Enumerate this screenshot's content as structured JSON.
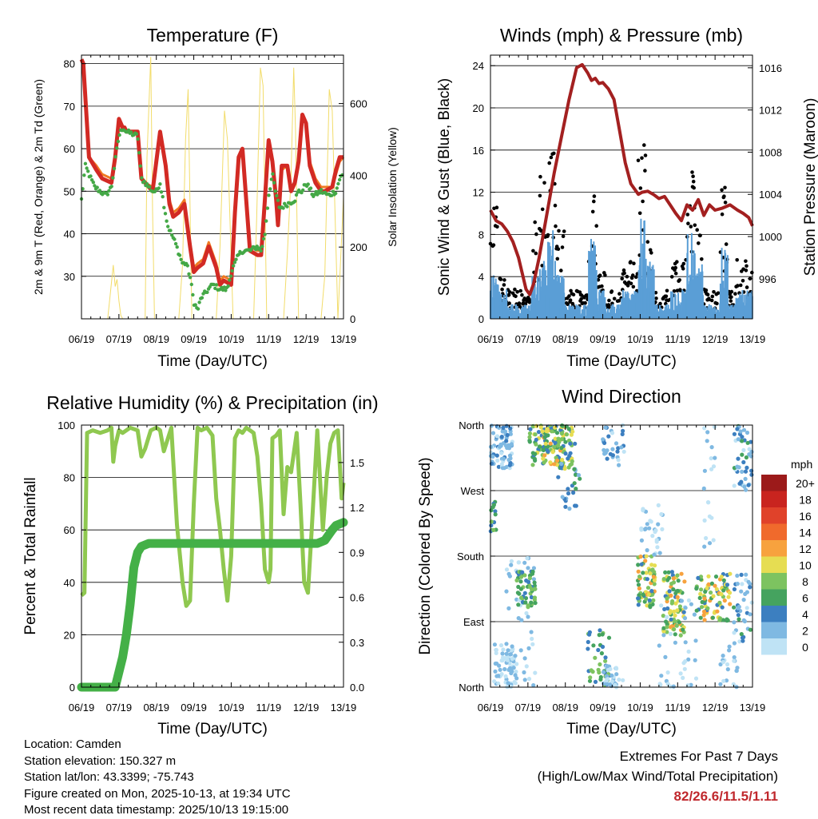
{
  "xticks": [
    "06/19",
    "07/19",
    "08/19",
    "09/19",
    "10/19",
    "11/19",
    "12/19",
    "13/19"
  ],
  "xlabel": "Time (Day/UTC)",
  "colors": {
    "temp2m": "#d22a24",
    "temp9m": "#f07a22",
    "dewpoint": "#44a846",
    "solar": "#f2dc6a",
    "wind": "#5a9ed6",
    "gust": "#000000",
    "pressure": "#a32020",
    "rh": "#8fc850",
    "precip": "#44b047"
  },
  "chart_data": [
    {
      "type": "line",
      "title": "Temperature (F)",
      "ylabel": "2m & 9m T (Red, Orange) & 2m Td (Green)",
      "y2label": "Solar Insolation (Yellow)",
      "ylim": [
        20,
        82
      ],
      "yticks": [
        30,
        40,
        50,
        60,
        70,
        80
      ],
      "y2lim": [
        0,
        735
      ],
      "y2ticks": [
        0,
        200,
        400,
        600
      ],
      "series": [
        {
          "name": "2m T",
          "color": "#d22a24",
          "x": [
            0,
            0.05,
            0.2,
            0.4,
            0.55,
            0.8,
            0.9,
            1.0,
            1.1,
            1.15,
            1.2,
            1.5,
            1.6,
            1.7,
            1.9,
            2.0,
            2.1,
            2.25,
            2.35,
            2.45,
            2.6,
            2.75,
            2.9,
            3.0,
            3.1,
            3.25,
            3.4,
            3.6,
            3.7,
            3.8,
            4.0,
            4.1,
            4.2,
            4.3,
            4.5,
            4.7,
            4.8,
            4.9,
            5.0,
            5.1,
            5.2,
            5.25,
            5.35,
            5.5,
            5.6,
            5.7,
            5.8,
            5.9,
            6.0,
            6.1,
            6.25,
            6.4,
            6.5,
            6.7,
            6.8,
            6.9,
            7.0
          ],
          "y": [
            81,
            80,
            58,
            55,
            53,
            52,
            58,
            67,
            65,
            65,
            64,
            64,
            53,
            52,
            50,
            57,
            64,
            56,
            47,
            44,
            45,
            47,
            37,
            31,
            32,
            33,
            37,
            32,
            28,
            29,
            28,
            45,
            58,
            60,
            36,
            35,
            35,
            48,
            62,
            57,
            48,
            42,
            56,
            56,
            50,
            52,
            57,
            68,
            66,
            56,
            52,
            50,
            50,
            51,
            55,
            58,
            58
          ]
        },
        {
          "name": "9m T",
          "color": "#f07a22",
          "x": [
            0,
            0.05,
            0.2,
            0.4,
            0.55,
            0.8,
            0.9,
            1.0,
            1.1,
            1.15,
            1.2,
            1.5,
            1.6,
            1.7,
            1.9,
            2.0,
            2.1,
            2.25,
            2.35,
            2.45,
            2.6,
            2.75,
            2.9,
            3.0,
            3.1,
            3.25,
            3.4,
            3.6,
            3.7,
            3.8,
            4.0,
            4.1,
            4.2,
            4.3,
            4.5,
            4.7,
            4.8,
            4.9,
            5.0,
            5.1,
            5.2,
            5.25,
            5.35,
            5.5,
            5.6,
            5.7,
            5.8,
            5.9,
            6.0,
            6.1,
            6.25,
            6.4,
            6.5,
            6.7,
            6.8,
            6.9,
            7.0
          ],
          "y": [
            81,
            80,
            58,
            56,
            54,
            53,
            58,
            66,
            65,
            65,
            64,
            64,
            53,
            52,
            51,
            57,
            63,
            57,
            48,
            45,
            46,
            48,
            38,
            32,
            33,
            34,
            38,
            33,
            29,
            30,
            29,
            45,
            57,
            60,
            37,
            36,
            36,
            48,
            61,
            57,
            49,
            43,
            55,
            56,
            51,
            52,
            57,
            67,
            66,
            57,
            53,
            51,
            51,
            51,
            54,
            57,
            58
          ]
        },
        {
          "name": "2m Td",
          "color": "#44a846",
          "x": [
            0,
            0.1,
            0.2,
            0.35,
            0.5,
            0.65,
            0.8,
            1.0,
            1.1,
            1.2,
            1.5,
            1.6,
            1.7,
            1.9,
            2.0,
            2.1,
            2.3,
            2.5,
            2.7,
            2.8,
            2.9,
            3.0,
            3.1,
            3.2,
            3.4,
            3.5,
            3.7,
            3.9,
            4.0,
            4.1,
            4.2,
            4.3,
            4.5,
            4.7,
            4.8,
            4.9,
            5.0,
            5.1,
            5.2,
            5.3,
            5.5,
            5.7,
            5.8,
            5.9,
            6.0,
            6.2,
            6.4,
            6.6,
            6.8,
            6.9,
            7.0
          ],
          "y": [
            48,
            56,
            54,
            51,
            50,
            49,
            51,
            63,
            65,
            64,
            63,
            53,
            52,
            50,
            50,
            52,
            42,
            38,
            33,
            33,
            30,
            24,
            22,
            25,
            27,
            28,
            27,
            27,
            31,
            33,
            35,
            36,
            36,
            37,
            36,
            40,
            49,
            54,
            49,
            46,
            47,
            48,
            50,
            50,
            52,
            49,
            50,
            49,
            50,
            53,
            54
          ]
        },
        {
          "name": "Solar Insolation",
          "color": "#f2dc6a",
          "axis": "y2",
          "x": [
            0,
            0.7,
            0.8,
            0.85,
            0.9,
            0.95,
            1.0,
            1.05,
            1.1,
            1.3,
            1.7,
            1.75,
            1.85,
            1.9,
            1.95,
            2.3,
            2.6,
            2.7,
            2.78,
            2.85,
            2.95,
            3.6,
            3.7,
            3.82,
            3.9,
            4.05,
            4.6,
            4.68,
            4.78,
            4.85,
            4.95,
            5.4,
            5.5,
            5.6,
            5.67,
            5.72,
            5.8,
            6.4,
            6.5,
            6.62,
            6.7,
            6.85,
            7.0
          ],
          "y": [
            0,
            0,
            100,
            150,
            90,
            110,
            50,
            10,
            0,
            0,
            0,
            450,
            730,
            300,
            0,
            0,
            0,
            150,
            500,
            640,
            0,
            0,
            200,
            580,
            500,
            0,
            0,
            280,
            700,
            650,
            0,
            0,
            180,
            400,
            700,
            520,
            0,
            0,
            120,
            640,
            580,
            0,
            340
          ]
        }
      ]
    },
    {
      "type": "scatter",
      "title": "Winds (mph) & Pressure (mb)",
      "ylabel": "Sonic Wind & Gust (Blue, Black)",
      "y2label": "Station Pressure (Maroon)",
      "ylim": [
        0,
        25
      ],
      "yticks": [
        0,
        4,
        8,
        12,
        16,
        20,
        24
      ],
      "y2lim": [
        992.2,
        1017.2
      ],
      "y2ticks": [
        996,
        1000,
        1004,
        1008,
        1012,
        1016
      ],
      "series": [
        {
          "name": "Sonic Wind",
          "color": "#5a9ed6",
          "mean": [
            3,
            2,
            1,
            1,
            1,
            3,
            4,
            6,
            3,
            1,
            1,
            1,
            6,
            2,
            1,
            1,
            2,
            2,
            7,
            4,
            1,
            1,
            2,
            2,
            6,
            4,
            1,
            1,
            5,
            1,
            2,
            2
          ]
        },
        {
          "name": "Gust",
          "color": "#000000",
          "mean": [
            8,
            3,
            2,
            2,
            2,
            7,
            10,
            12,
            6,
            2,
            2,
            2,
            10,
            4,
            2,
            2,
            4,
            4,
            12,
            7,
            2,
            2,
            4,
            4,
            10,
            7,
            2,
            2,
            9,
            2,
            4,
            4
          ]
        },
        {
          "name": "Station Pressure",
          "color": "#a32020",
          "x": [
            0,
            0.15,
            0.3,
            0.45,
            0.6,
            0.75,
            0.85,
            0.95,
            1.05,
            1.15,
            1.3,
            1.5,
            1.7,
            1.9,
            2.1,
            2.3,
            2.45,
            2.6,
            2.7,
            2.8,
            2.9,
            3.0,
            3.15,
            3.3,
            3.45,
            3.6,
            3.75,
            3.85,
            3.95,
            4.05,
            4.2,
            4.35,
            4.5,
            4.65,
            4.8,
            4.95,
            5.1,
            5.25,
            5.4,
            5.55,
            5.7,
            5.85,
            6.0,
            6.2,
            6.4,
            6.6,
            6.75,
            6.9,
            7.0
          ],
          "y": [
            1002.5,
            1001.5,
            1001.2,
            1000.5,
            999.5,
            998,
            996.5,
            995,
            994.5,
            995.5,
            998,
            1002,
            1006,
            1009.5,
            1013,
            1016,
            1016.3,
            1015.5,
            1014.8,
            1015,
            1014.5,
            1014.6,
            1014,
            1013,
            1010,
            1007,
            1005,
            1004.5,
            1004,
            1004.2,
            1004.3,
            1004,
            1003.6,
            1003.8,
            1003,
            1002.2,
            1001.5,
            1003,
            1002.5,
            1003.5,
            1002,
            1003,
            1002.5,
            1002.7,
            1003,
            1002.5,
            1002.2,
            1001.8,
            1001
          ]
        }
      ]
    },
    {
      "type": "line",
      "title": "Relative Humidity (%) & Precipitation (in)",
      "ylabel": "Percent & Total Rainfall",
      "ylim": [
        0,
        100
      ],
      "yticks": [
        0,
        20,
        40,
        60,
        80,
        100
      ],
      "y2lim": [
        0,
        1.75
      ],
      "y2ticks": [
        "0.0",
        "0.3",
        "0.6",
        "0.9",
        "1.2",
        "1.5"
      ],
      "series": [
        {
          "name": "Relative Humidity",
          "color": "#8fc850",
          "x": [
            0,
            0.08,
            0.15,
            0.3,
            0.5,
            0.7,
            0.8,
            0.85,
            0.9,
            1.0,
            1.1,
            1.3,
            1.5,
            1.6,
            1.7,
            1.85,
            2.0,
            2.1,
            2.2,
            2.4,
            2.55,
            2.7,
            2.8,
            2.9,
            3.0,
            3.1,
            3.2,
            3.35,
            3.5,
            3.6,
            3.7,
            3.8,
            3.9,
            4.0,
            4.1,
            4.2,
            4.3,
            4.4,
            4.5,
            4.6,
            4.7,
            4.8,
            4.9,
            5.0,
            5.05,
            5.1,
            5.2,
            5.3,
            5.4,
            5.5,
            5.6,
            5.75,
            5.85,
            5.95,
            6.05,
            6.15,
            6.3,
            6.45,
            6.55,
            6.65,
            6.75,
            6.85,
            6.95,
            7.0
          ],
          "y": [
            35,
            36,
            97,
            98,
            97,
            98,
            99,
            86,
            92,
            98,
            97,
            99,
            98,
            88,
            91,
            98,
            99,
            98,
            90,
            99,
            62,
            40,
            31,
            33,
            70,
            99,
            98,
            99,
            96,
            72,
            60,
            45,
            33,
            50,
            95,
            98,
            97,
            99,
            98,
            97,
            88,
            70,
            45,
            40,
            45,
            95,
            96,
            98,
            66,
            84,
            82,
            97,
            70,
            40,
            36,
            60,
            98,
            60,
            80,
            93,
            97,
            98,
            72,
            78
          ]
        },
        {
          "name": "Total Precipitation",
          "color": "#44b047",
          "axis": "y2",
          "x": [
            0,
            0.5,
            0.9,
            1.1,
            1.2,
            1.3,
            1.4,
            1.5,
            1.6,
            1.8,
            2.0,
            3.0,
            4.0,
            5.0,
            6.0,
            6.3,
            6.5,
            6.7,
            6.8,
            7.0
          ],
          "y": [
            0,
            0,
            0,
            0.2,
            0.35,
            0.55,
            0.8,
            0.9,
            0.94,
            0.96,
            0.96,
            0.96,
            0.96,
            0.96,
            0.96,
            0.96,
            0.98,
            1.05,
            1.08,
            1.1
          ]
        }
      ]
    },
    {
      "type": "scatter",
      "title": "Wind Direction",
      "ylabel": "Direction (Colored By Speed)",
      "ylim": [
        0,
        360
      ],
      "ytick_labels": [
        "North",
        "East",
        "South",
        "West",
        "North"
      ],
      "legend": {
        "title": "mph",
        "levels": [
          "20+",
          "18",
          "16",
          "14",
          "12",
          "10",
          "8",
          "6",
          "4",
          "2",
          "0"
        ],
        "colors": [
          "#9c1a1a",
          "#c9241f",
          "#e0422a",
          "#f06a2c",
          "#f7a23e",
          "#e6dd52",
          "#7dc360",
          "#45a35f",
          "#3c7fc0",
          "#7fb9e2",
          "#bfe3f5"
        ]
      }
    }
  ],
  "info": {
    "location": "Location: Camden",
    "elevation": "Station elevation: 150.327 m",
    "latlon": "Station lat/lon: 43.3399; -75.743",
    "created": "Figure created on Mon, 2025-10-13, at 19:34 UTC",
    "recent": "Most recent data timestamp: 2025/10/13 19:15:00"
  },
  "extremes": {
    "line1": "Extremes For Past 7 Days",
    "line2": "(High/Low/Max Wind/Total Precipitation)",
    "values": "82/26.6/11.5/1.11"
  }
}
